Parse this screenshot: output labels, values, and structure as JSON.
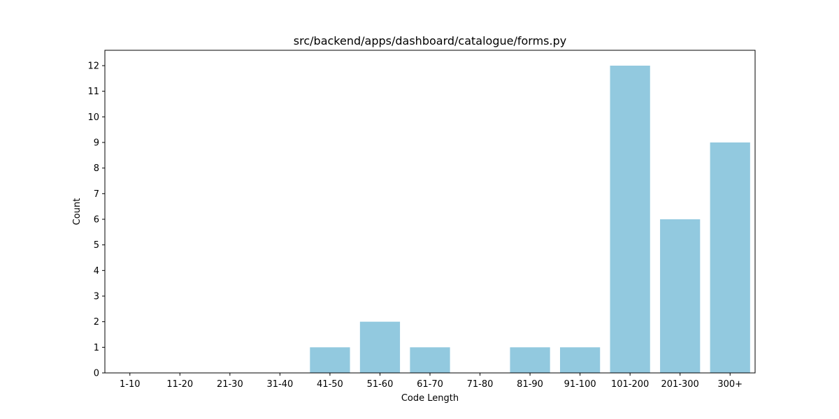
{
  "chart_data": {
    "type": "bar",
    "title": "src/backend/apps/dashboard/catalogue/forms.py",
    "xlabel": "Code Length",
    "ylabel": "Count",
    "categories": [
      "1-10",
      "11-20",
      "21-30",
      "31-40",
      "41-50",
      "51-60",
      "61-70",
      "71-80",
      "81-90",
      "91-100",
      "101-200",
      "201-300",
      "300+"
    ],
    "values": [
      0,
      0,
      0,
      0,
      1,
      2,
      1,
      0,
      1,
      1,
      12,
      6,
      9
    ],
    "ylim": [
      0,
      12.6
    ],
    "yticks": [
      0,
      1,
      2,
      3,
      4,
      5,
      6,
      7,
      8,
      9,
      10,
      11,
      12
    ],
    "grid": false,
    "bar_color": "#92c9df"
  }
}
